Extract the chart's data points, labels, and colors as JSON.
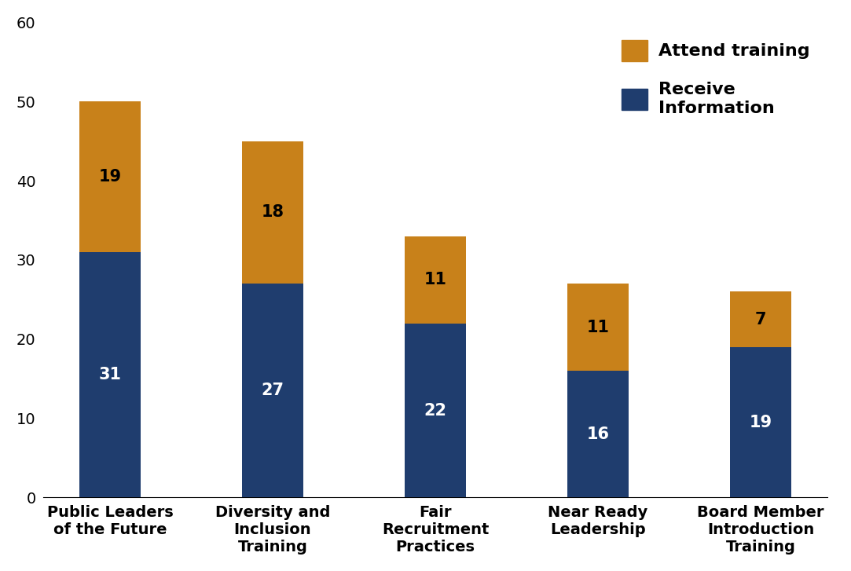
{
  "categories": [
    "Public Leaders\nof the Future",
    "Diversity and\nInclusion\nTraining",
    "Fair\nRecruitment\nPractices",
    "Near Ready\nLeadership",
    "Board Member\nIntroduction\nTraining"
  ],
  "receive_info": [
    31,
    27,
    22,
    16,
    19
  ],
  "attend_training": [
    19,
    18,
    11,
    11,
    7
  ],
  "color_receive": "#1F3D6E",
  "color_attend": "#C8811A",
  "ylim": [
    0,
    60
  ],
  "yticks": [
    0,
    10,
    20,
    30,
    40,
    50,
    60
  ],
  "legend_attend": "Attend training",
  "legend_receive": "Receive\nInformation",
  "label_fontsize": 15,
  "tick_fontsize": 14,
  "bar_width": 0.38
}
